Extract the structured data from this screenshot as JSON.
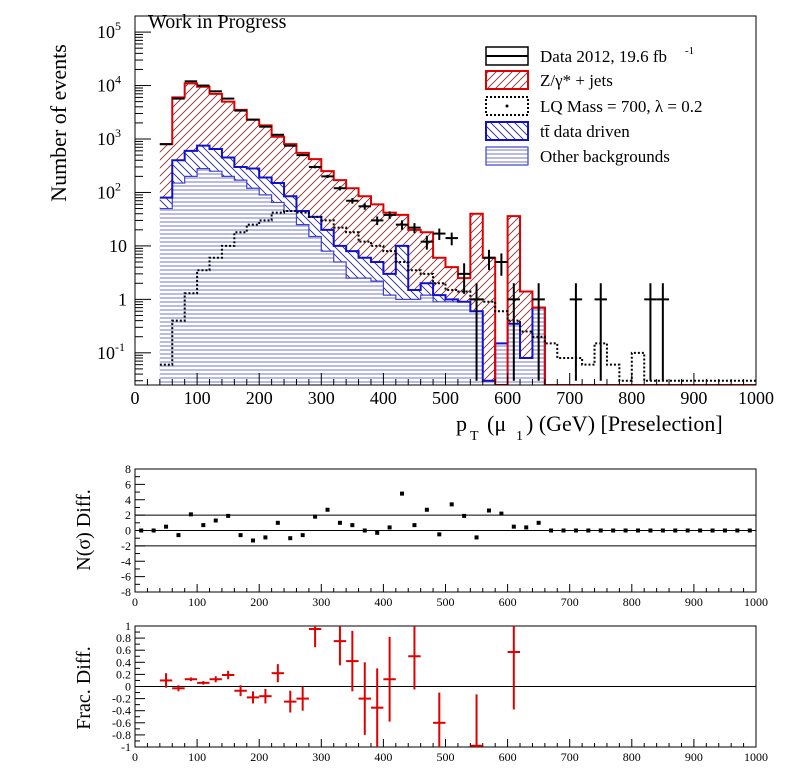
{
  "chart_data": [
    {
      "type": "histogram",
      "title": "Work in Progress",
      "xlabel": "p_T (μ_1) (GeV)  [Preselection]",
      "xlabel_parts": {
        "p": "p",
        "sub1": "T",
        "mid": "(μ",
        "sub2": "1",
        "tail": ") (GeV)  [Preselection]"
      },
      "ylabel": "Number of events",
      "xlim": [
        0,
        1000
      ],
      "ylim": [
        0.025,
        200000
      ],
      "yscale": "log",
      "bin_width": 20,
      "bin_edges_start": 40,
      "x_ticks": [
        "0",
        "100",
        "200",
        "300",
        "400",
        "500",
        "600",
        "700",
        "800",
        "900",
        "1000"
      ],
      "y_ticks": [
        {
          "base": "10",
          "exp": "-1",
          "value": 0.1
        },
        {
          "base": "1",
          "exp": "",
          "value": 1
        },
        {
          "base": "10",
          "exp": "",
          "value": 10
        },
        {
          "base": "10",
          "exp": "2",
          "value": 100
        },
        {
          "base": "10",
          "exp": "3",
          "value": 1000
        },
        {
          "base": "10",
          "exp": "4",
          "value": 10000
        },
        {
          "base": "10",
          "exp": "5",
          "value": 100000
        }
      ],
      "legend": [
        {
          "label": "Data 2012, 19.6 fb",
          "sup": "-1",
          "style": "data"
        },
        {
          "label": "Z/γ* + jets",
          "style": "z"
        },
        {
          "label": "LQ Mass = 700, λ = 0.2",
          "style": "lq"
        },
        {
          "label": "tt̄ data driven",
          "style": "tt"
        },
        {
          "label": "Other backgrounds",
          "style": "other"
        }
      ],
      "legend_position": "top-right",
      "series": {
        "total_bkg": [
          800,
          6000,
          11000,
          9500,
          7000,
          5000,
          3500,
          2300,
          1800,
          1100,
          800,
          550,
          420,
          250,
          170,
          120,
          85,
          60,
          42,
          38,
          20,
          18,
          6,
          4,
          2.5,
          40,
          6,
          0,
          36,
          1.4,
          0.7,
          0.02,
          0.025,
          0.02,
          0.02,
          0.02,
          0.02,
          0.02,
          0.02,
          0.02,
          0.02,
          0.02,
          0.02,
          0.02,
          0.02,
          0.02,
          0.02,
          0.02
        ],
        "ttbar_plus_other": [
          80,
          400,
          600,
          750,
          650,
          450,
          300,
          280,
          190,
          150,
          85,
          45,
          35,
          20,
          10,
          8,
          6,
          5,
          3,
          10,
          1.5,
          2,
          1.2,
          1.0,
          0.9,
          0.6,
          0.03,
          0.15,
          0.35,
          0.08,
          0.7,
          0.02,
          0.02,
          0.02,
          0.02,
          0.02,
          0.02,
          0.02,
          0.02,
          0.02,
          0.02,
          0.02,
          0.02,
          0.02,
          0.02,
          0.02,
          0.02,
          0.02
        ],
        "other": [
          50,
          150,
          200,
          280,
          250,
          200,
          170,
          120,
          90,
          65,
          45,
          25,
          15,
          8,
          5,
          2.5,
          2.5,
          2.2,
          1.2,
          1.0,
          1.0,
          1.2,
          0.9,
          0.9,
          0.9,
          0.6,
          0.03,
          0.15,
          0.35,
          0.08,
          0.7,
          0.02,
          0.02,
          0.02,
          0.02,
          0.02,
          0.02,
          0.02,
          0.02,
          0.02,
          0.02,
          0.02,
          0.02,
          0.02,
          0.02,
          0.02,
          0.02,
          0.02
        ],
        "lq": [
          0.06,
          0.4,
          1.3,
          3.5,
          6,
          10,
          18,
          25,
          30,
          42,
          45,
          42,
          35,
          30,
          22,
          18,
          12,
          10,
          8,
          5,
          3.5,
          3,
          2,
          1.5,
          1.4,
          1.0,
          0.9,
          0.6,
          0.4,
          0.25,
          0.2,
          0.15,
          0.08,
          0.08,
          0.06,
          0.15,
          0.06,
          0.03,
          0.1,
          0.03,
          0.03,
          0.03,
          0.03,
          0.03,
          0.03,
          0.03,
          0.03,
          0.03
        ],
        "data_points": [
          {
            "x": 50,
            "y": 800,
            "xerr": 10
          },
          {
            "x": 70,
            "y": 5700,
            "xerr": 10
          },
          {
            "x": 90,
            "y": 12000,
            "xerr": 10
          },
          {
            "x": 110,
            "y": 10000,
            "xerr": 10
          },
          {
            "x": 130,
            "y": 7800,
            "xerr": 10
          },
          {
            "x": 150,
            "y": 5700,
            "xerr": 10
          },
          {
            "x": 170,
            "y": 3400,
            "xerr": 10
          },
          {
            "x": 190,
            "y": 2300,
            "xerr": 10
          },
          {
            "x": 210,
            "y": 1700,
            "xerr": 10
          },
          {
            "x": 230,
            "y": 1200,
            "xerr": 10
          },
          {
            "x": 250,
            "y": 750,
            "xerr": 10
          },
          {
            "x": 270,
            "y": 500,
            "xerr": 10
          },
          {
            "x": 290,
            "y": 300,
            "xerr": 10
          },
          {
            "x": 310,
            "y": 200,
            "xerr": 10
          },
          {
            "x": 330,
            "y": 120,
            "xerr": 10
          },
          {
            "x": 350,
            "y": 70,
            "xerr": 10
          },
          {
            "x": 370,
            "y": 55,
            "xerr": 10
          },
          {
            "x": 390,
            "y": 30,
            "xerr": 10
          },
          {
            "x": 410,
            "y": 38,
            "xerr": 10
          },
          {
            "x": 430,
            "y": 25,
            "xerr": 10
          },
          {
            "x": 450,
            "y": 22,
            "xerr": 10
          },
          {
            "x": 470,
            "y": 12,
            "xerr": 10
          },
          {
            "x": 490,
            "y": 17,
            "xerr": 10
          },
          {
            "x": 510,
            "y": 14,
            "xerr": 10
          },
          {
            "x": 530,
            "y": 3,
            "xerr": 10
          },
          {
            "x": 550,
            "y": 1,
            "xerr": 10
          },
          {
            "x": 570,
            "y": 6,
            "xerr": 10
          },
          {
            "x": 590,
            "y": 5,
            "xerr": 10
          },
          {
            "x": 610,
            "y": 1,
            "xerr": 10
          },
          {
            "x": 650,
            "y": 1,
            "xerr": 10
          },
          {
            "x": 710,
            "y": 1,
            "xerr": 10
          },
          {
            "x": 750,
            "y": 1,
            "xerr": 10
          },
          {
            "x": 830,
            "y": 1,
            "xerr": 10
          },
          {
            "x": 850,
            "y": 1,
            "xerr": 10
          }
        ]
      }
    },
    {
      "type": "scatter",
      "ylabel": "N(σ) Diff.",
      "xlim": [
        0,
        1000
      ],
      "ylim": [
        -8,
        8
      ],
      "y_ticks": [
        "8",
        "6",
        "4",
        "2",
        "0",
        "-2",
        "-4",
        "-6",
        "-8"
      ],
      "x_ticks": [
        "0",
        "100",
        "200",
        "300",
        "400",
        "500",
        "600",
        "700",
        "800",
        "900",
        "1000"
      ],
      "reference_lines": [
        2,
        0,
        -2
      ],
      "x": [
        10,
        30,
        50,
        70,
        90,
        110,
        130,
        150,
        170,
        190,
        210,
        230,
        250,
        270,
        290,
        310,
        330,
        350,
        370,
        390,
        410,
        430,
        450,
        470,
        490,
        510,
        530,
        550,
        570,
        590,
        610,
        630,
        650,
        670,
        690,
        710,
        730,
        750,
        770,
        790,
        810,
        830,
        850,
        870,
        890,
        910,
        930,
        950,
        970,
        990
      ],
      "values": [
        0,
        0,
        0.5,
        -0.6,
        2.1,
        0.7,
        1.3,
        1.9,
        -0.6,
        -1.3,
        -0.9,
        1.0,
        -1.0,
        -0.6,
        1.8,
        2.7,
        1.0,
        0.7,
        0,
        -0.3,
        0.4,
        4.8,
        0.7,
        2.7,
        -0.5,
        3.4,
        1.9,
        -0.9,
        2.6,
        2.2,
        0.5,
        0.4,
        1.0,
        0,
        0,
        0,
        0,
        0,
        0,
        0,
        0,
        0,
        0,
        0,
        0,
        0,
        0,
        0,
        0,
        0
      ]
    },
    {
      "type": "scatter",
      "ylabel": "Frac. Diff.",
      "xlim": [
        0,
        1000
      ],
      "ylim": [
        -1,
        1
      ],
      "y_ticks": [
        "1",
        "0.8",
        "0.6",
        "0.4",
        "0.2",
        "0",
        "-0.2",
        "-0.4",
        "-0.6",
        "-0.8",
        "-1"
      ],
      "x_ticks": [
        "0",
        "100",
        "200",
        "300",
        "400",
        "500",
        "600",
        "700",
        "800",
        "900",
        "1000"
      ],
      "reference_lines": [
        0
      ],
      "series": [
        {
          "x": 50,
          "y": 0.1,
          "yerr": 0.12
        },
        {
          "x": 70,
          "y": -0.03,
          "yerr": 0.05
        },
        {
          "x": 90,
          "y": 0.12,
          "yerr": 0.03
        },
        {
          "x": 110,
          "y": 0.06,
          "yerr": 0.03
        },
        {
          "x": 130,
          "y": 0.12,
          "yerr": 0.05
        },
        {
          "x": 150,
          "y": 0.19,
          "yerr": 0.07
        },
        {
          "x": 170,
          "y": -0.07,
          "yerr": 0.09
        },
        {
          "x": 190,
          "y": -0.18,
          "yerr": 0.1
        },
        {
          "x": 210,
          "y": -0.16,
          "yerr": 0.12
        },
        {
          "x": 230,
          "y": 0.22,
          "yerr": 0.15
        },
        {
          "x": 250,
          "y": -0.25,
          "yerr": 0.18
        },
        {
          "x": 270,
          "y": -0.2,
          "yerr": 0.2
        },
        {
          "x": 290,
          "y": 0.95,
          "yerr": 0.3
        },
        {
          "x": 330,
          "y": 0.75,
          "yerr": 0.4
        },
        {
          "x": 350,
          "y": 0.42,
          "yerr": 0.5
        },
        {
          "x": 370,
          "y": -0.2,
          "yerr": 0.6
        },
        {
          "x": 390,
          "y": -0.35,
          "yerr": 0.65
        },
        {
          "x": 410,
          "y": 0.12,
          "yerr": 0.7
        },
        {
          "x": 450,
          "y": 0.5,
          "yerr": 0.55
        },
        {
          "x": 490,
          "y": -0.6,
          "yerr": 0.5
        },
        {
          "x": 550,
          "y": -0.98,
          "yerr": 0.85
        },
        {
          "x": 610,
          "y": 0.57,
          "yerr": 0.95
        }
      ],
      "color": "#e00000"
    }
  ]
}
